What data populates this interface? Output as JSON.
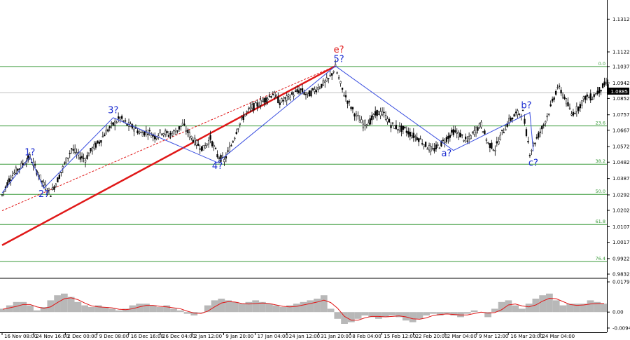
{
  "colors": {
    "background": "#ffffff",
    "candles": "#000000",
    "fib_line": "#3a9a3a",
    "wave_line": "#3b4fe0",
    "trend_line": "#e01818",
    "wave_label": "#1a2bd0",
    "red_label": "#e01818",
    "current_price_bg": "#000000",
    "osc_hist": "#b8b8b8",
    "osc_line": "#e01818"
  },
  "chart_data": [
    {
      "type": "candlestick",
      "symbol": "EURUSD",
      "timeframe": "H4",
      "ylim": [
        0.9832,
        1.1407
      ],
      "y_ticks": [
        "1.1312",
        "1.1122",
        "1.1037",
        "1.0942",
        "1.0852",
        "1.0757",
        "1.0667",
        "1.0572",
        "1.0482",
        "1.0387",
        "1.0292",
        "1.0202",
        "1.0107",
        "1.0017",
        "0.9922",
        "0.9832"
      ],
      "current_price": "1.0885",
      "x_ticks": [
        "16 Nov 08:00",
        "24 Nov 16:00",
        "2 Dec 00:00",
        "9 Dec 08:00",
        "16 Dec 16:00",
        "26 Dec 04:00",
        "2 Jan 12:00",
        "9 Jan 20:00",
        "17 Jan 04:00",
        "24 Jan 12:00",
        "31 Jan 20:00",
        "8 Feb 04:00",
        "15 Feb 12:00",
        "22 Feb 20:00",
        "2 Mar 04:00",
        "9 Mar 12:00",
        "16 Mar 20:00",
        "24 Mar 04:00"
      ],
      "close_path": [
        [
          0,
          1.029
        ],
        [
          2,
          1.038
        ],
        [
          4,
          1.043
        ],
        [
          6,
          1.047
        ],
        [
          8,
          1.0512
        ],
        [
          10,
          1.043
        ],
        [
          12,
          1.035
        ],
        [
          14,
          1.03
        ],
        [
          16,
          1.038
        ],
        [
          18,
          1.047
        ],
        [
          20,
          1.056
        ],
        [
          22,
          1.052
        ],
        [
          24,
          1.05
        ],
        [
          26,
          1.056
        ],
        [
          28,
          1.06
        ],
        [
          30,
          1.066
        ],
        [
          32,
          1.07
        ],
        [
          34,
          1.074
        ],
        [
          36,
          1.07
        ],
        [
          38,
          1.068
        ],
        [
          40,
          1.065
        ],
        [
          42,
          1.066
        ],
        [
          44,
          1.063
        ],
        [
          46,
          1.066
        ],
        [
          48,
          1.064
        ],
        [
          50,
          1.066
        ],
        [
          52,
          1.07
        ],
        [
          54,
          1.064
        ],
        [
          56,
          1.059
        ],
        [
          58,
          1.056
        ],
        [
          60,
          1.062
        ],
        [
          62,
          1.052
        ],
        [
          64,
          1.049
        ],
        [
          66,
          1.058
        ],
        [
          68,
          1.069
        ],
        [
          70,
          1.076
        ],
        [
          72,
          1.08
        ],
        [
          74,
          1.082
        ],
        [
          76,
          1.085
        ],
        [
          78,
          1.088
        ],
        [
          80,
          1.083
        ],
        [
          82,
          1.085
        ],
        [
          84,
          1.088
        ],
        [
          86,
          1.09
        ],
        [
          88,
          1.087
        ],
        [
          90,
          1.09
        ],
        [
          92,
          1.093
        ],
        [
          94,
          1.096
        ],
        [
          96,
          1.1033
        ],
        [
          98,
          1.09
        ],
        [
          100,
          1.082
        ],
        [
          102,
          1.075
        ],
        [
          104,
          1.07
        ],
        [
          106,
          1.072
        ],
        [
          108,
          1.077
        ],
        [
          110,
          1.076
        ],
        [
          112,
          1.07
        ],
        [
          114,
          1.068
        ],
        [
          116,
          1.067
        ],
        [
          118,
          1.064
        ],
        [
          120,
          1.062
        ],
        [
          122,
          1.058
        ],
        [
          124,
          1.055
        ],
        [
          126,
          1.058
        ],
        [
          128,
          1.062
        ],
        [
          130,
          1.066
        ],
        [
          132,
          1.064
        ],
        [
          134,
          1.06
        ],
        [
          136,
          1.066
        ],
        [
          138,
          1.07
        ],
        [
          140,
          1.059
        ],
        [
          142,
          1.056
        ],
        [
          144,
          1.065
        ],
        [
          146,
          1.072
        ],
        [
          148,
          1.076
        ],
        [
          150,
          1.077
        ],
        [
          152,
          1.054
        ],
        [
          154,
          1.062
        ],
        [
          156,
          1.07
        ],
        [
          158,
          1.08
        ],
        [
          160,
          1.092
        ],
        [
          162,
          1.086
        ],
        [
          164,
          1.076
        ],
        [
          166,
          1.08
        ],
        [
          168,
          1.086
        ],
        [
          170,
          1.086
        ],
        [
          172,
          1.09
        ],
        [
          174,
          1.094
        ],
        [
          175,
          1.09
        ]
      ],
      "fib_levels": [
        {
          "label": "0.0",
          "value": 1.1037
        },
        {
          "label": "23.6",
          "value": 1.0692
        },
        {
          "label": "38.2",
          "value": 1.047
        },
        {
          "label": "50.0",
          "value": 1.0295
        },
        {
          "label": "61.8",
          "value": 1.012
        },
        {
          "label": "76.4",
          "value": 0.9905
        }
      ],
      "wave_path": [
        [
          0,
          1.0303
        ],
        [
          8,
          1.0512
        ],
        [
          12,
          1.033
        ],
        [
          32,
          1.074
        ],
        [
          62,
          1.048
        ],
        [
          96,
          1.104
        ],
        [
          130,
          1.055
        ],
        [
          152,
          1.077
        ],
        [
          153,
          1.0545
        ]
      ],
      "trend_line": [
        [
          0,
          1.0
        ],
        [
          96,
          1.104
        ]
      ],
      "dashed_trend_line": [
        [
          0,
          1.02
        ],
        [
          96,
          1.104
        ]
      ],
      "wave_labels": [
        {
          "text": "1?",
          "x": 8,
          "y": 1.0522,
          "color": "wave"
        },
        {
          "text": "2?",
          "x": 12,
          "y": 1.028,
          "color": "wave"
        },
        {
          "text": "3?",
          "x": 32,
          "y": 1.0765,
          "color": "wave"
        },
        {
          "text": "4?",
          "x": 62,
          "y": 1.0443,
          "color": "wave"
        },
        {
          "text": "5?",
          "x": 97,
          "y": 1.1063,
          "color": "wave"
        },
        {
          "text": "e?",
          "x": 97,
          "y": 1.1118,
          "color": "red"
        },
        {
          "text": "a?",
          "x": 128,
          "y": 1.0515,
          "color": "wave"
        },
        {
          "text": "b?",
          "x": 151,
          "y": 1.0795,
          "color": "wave"
        },
        {
          "text": "c?",
          "x": 153,
          "y": 1.046,
          "color": "wave"
        }
      ]
    },
    {
      "type": "area",
      "name": "oscillator",
      "ylim": [
        -0.0095,
        0.018
      ],
      "y_ticks": [
        "0.01797",
        "0.00",
        "-0.00948"
      ],
      "values": [
        0.002,
        0.004,
        0.006,
        0.006,
        0.004,
        0.001,
        0.003,
        0.007,
        0.01,
        0.011,
        0.009,
        0.006,
        0.004,
        0.003,
        0.004,
        0.003,
        0.002,
        0.001,
        0.002,
        0.004,
        0.005,
        0.005,
        0.004,
        0.003,
        0.004,
        0.002,
        0.001,
        -0.001,
        -0.002,
        0.0,
        0.004,
        0.007,
        0.008,
        0.007,
        0.006,
        0.005,
        0.006,
        0.007,
        0.006,
        0.005,
        0.004,
        0.003,
        0.004,
        0.005,
        0.006,
        0.007,
        0.008,
        0.01,
        0.002,
        -0.004,
        -0.007,
        -0.006,
        -0.004,
        -0.002,
        -0.003,
        -0.004,
        -0.003,
        -0.002,
        -0.003,
        -0.005,
        -0.006,
        -0.004,
        -0.002,
        -0.001,
        -0.002,
        -0.001,
        -0.002,
        -0.003,
        -0.001,
        0.001,
        0.0,
        -0.003,
        0.002,
        0.006,
        0.007,
        0.004,
        0.002,
        0.005,
        0.008,
        0.01,
        0.011,
        0.007,
        0.004,
        0.005,
        0.005,
        0.005,
        0.007,
        0.006,
        0.005
      ]
    }
  ]
}
